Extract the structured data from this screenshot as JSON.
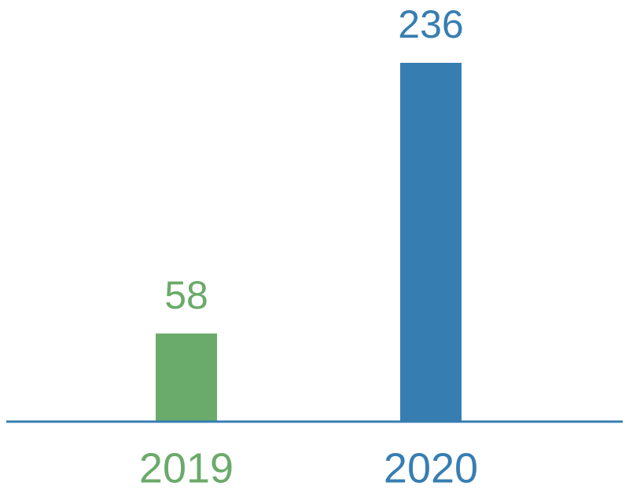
{
  "chart_data": {
    "type": "bar",
    "categories": [
      "2019",
      "2020"
    ],
    "values": [
      58,
      236
    ],
    "colors": [
      "#6aaa6a",
      "#367eb2"
    ],
    "axis_color": "#367eb2"
  }
}
